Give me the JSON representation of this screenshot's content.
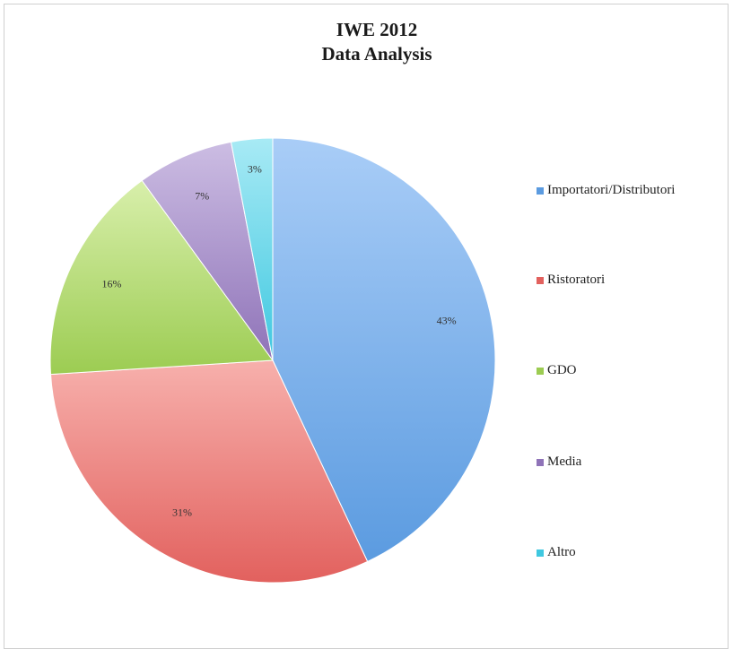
{
  "chart_data": {
    "type": "pie",
    "title_line1": "IWE 2012",
    "title_line2": "Data Analysis",
    "slices": [
      {
        "name": "Importatori/Distributori",
        "value": 43,
        "label": "43%",
        "color": "#5b9be0",
        "color_light": "#a9cdf7"
      },
      {
        "name": "Ristoratori",
        "value": 31,
        "label": "31%",
        "color": "#e2615e",
        "color_light": "#f7b0ac"
      },
      {
        "name": "GDO",
        "value": 16,
        "label": "16%",
        "color": "#9ccc52",
        "color_light": "#d8efab"
      },
      {
        "name": "Media",
        "value": 7,
        "label": "7%",
        "color": "#8f73b8",
        "color_light": "#ccbde3"
      },
      {
        "name": "Altro",
        "value": 3,
        "label": "3%",
        "color": "#3fc8e0",
        "color_light": "#a8eaf5"
      }
    ],
    "legend_position": "right"
  }
}
